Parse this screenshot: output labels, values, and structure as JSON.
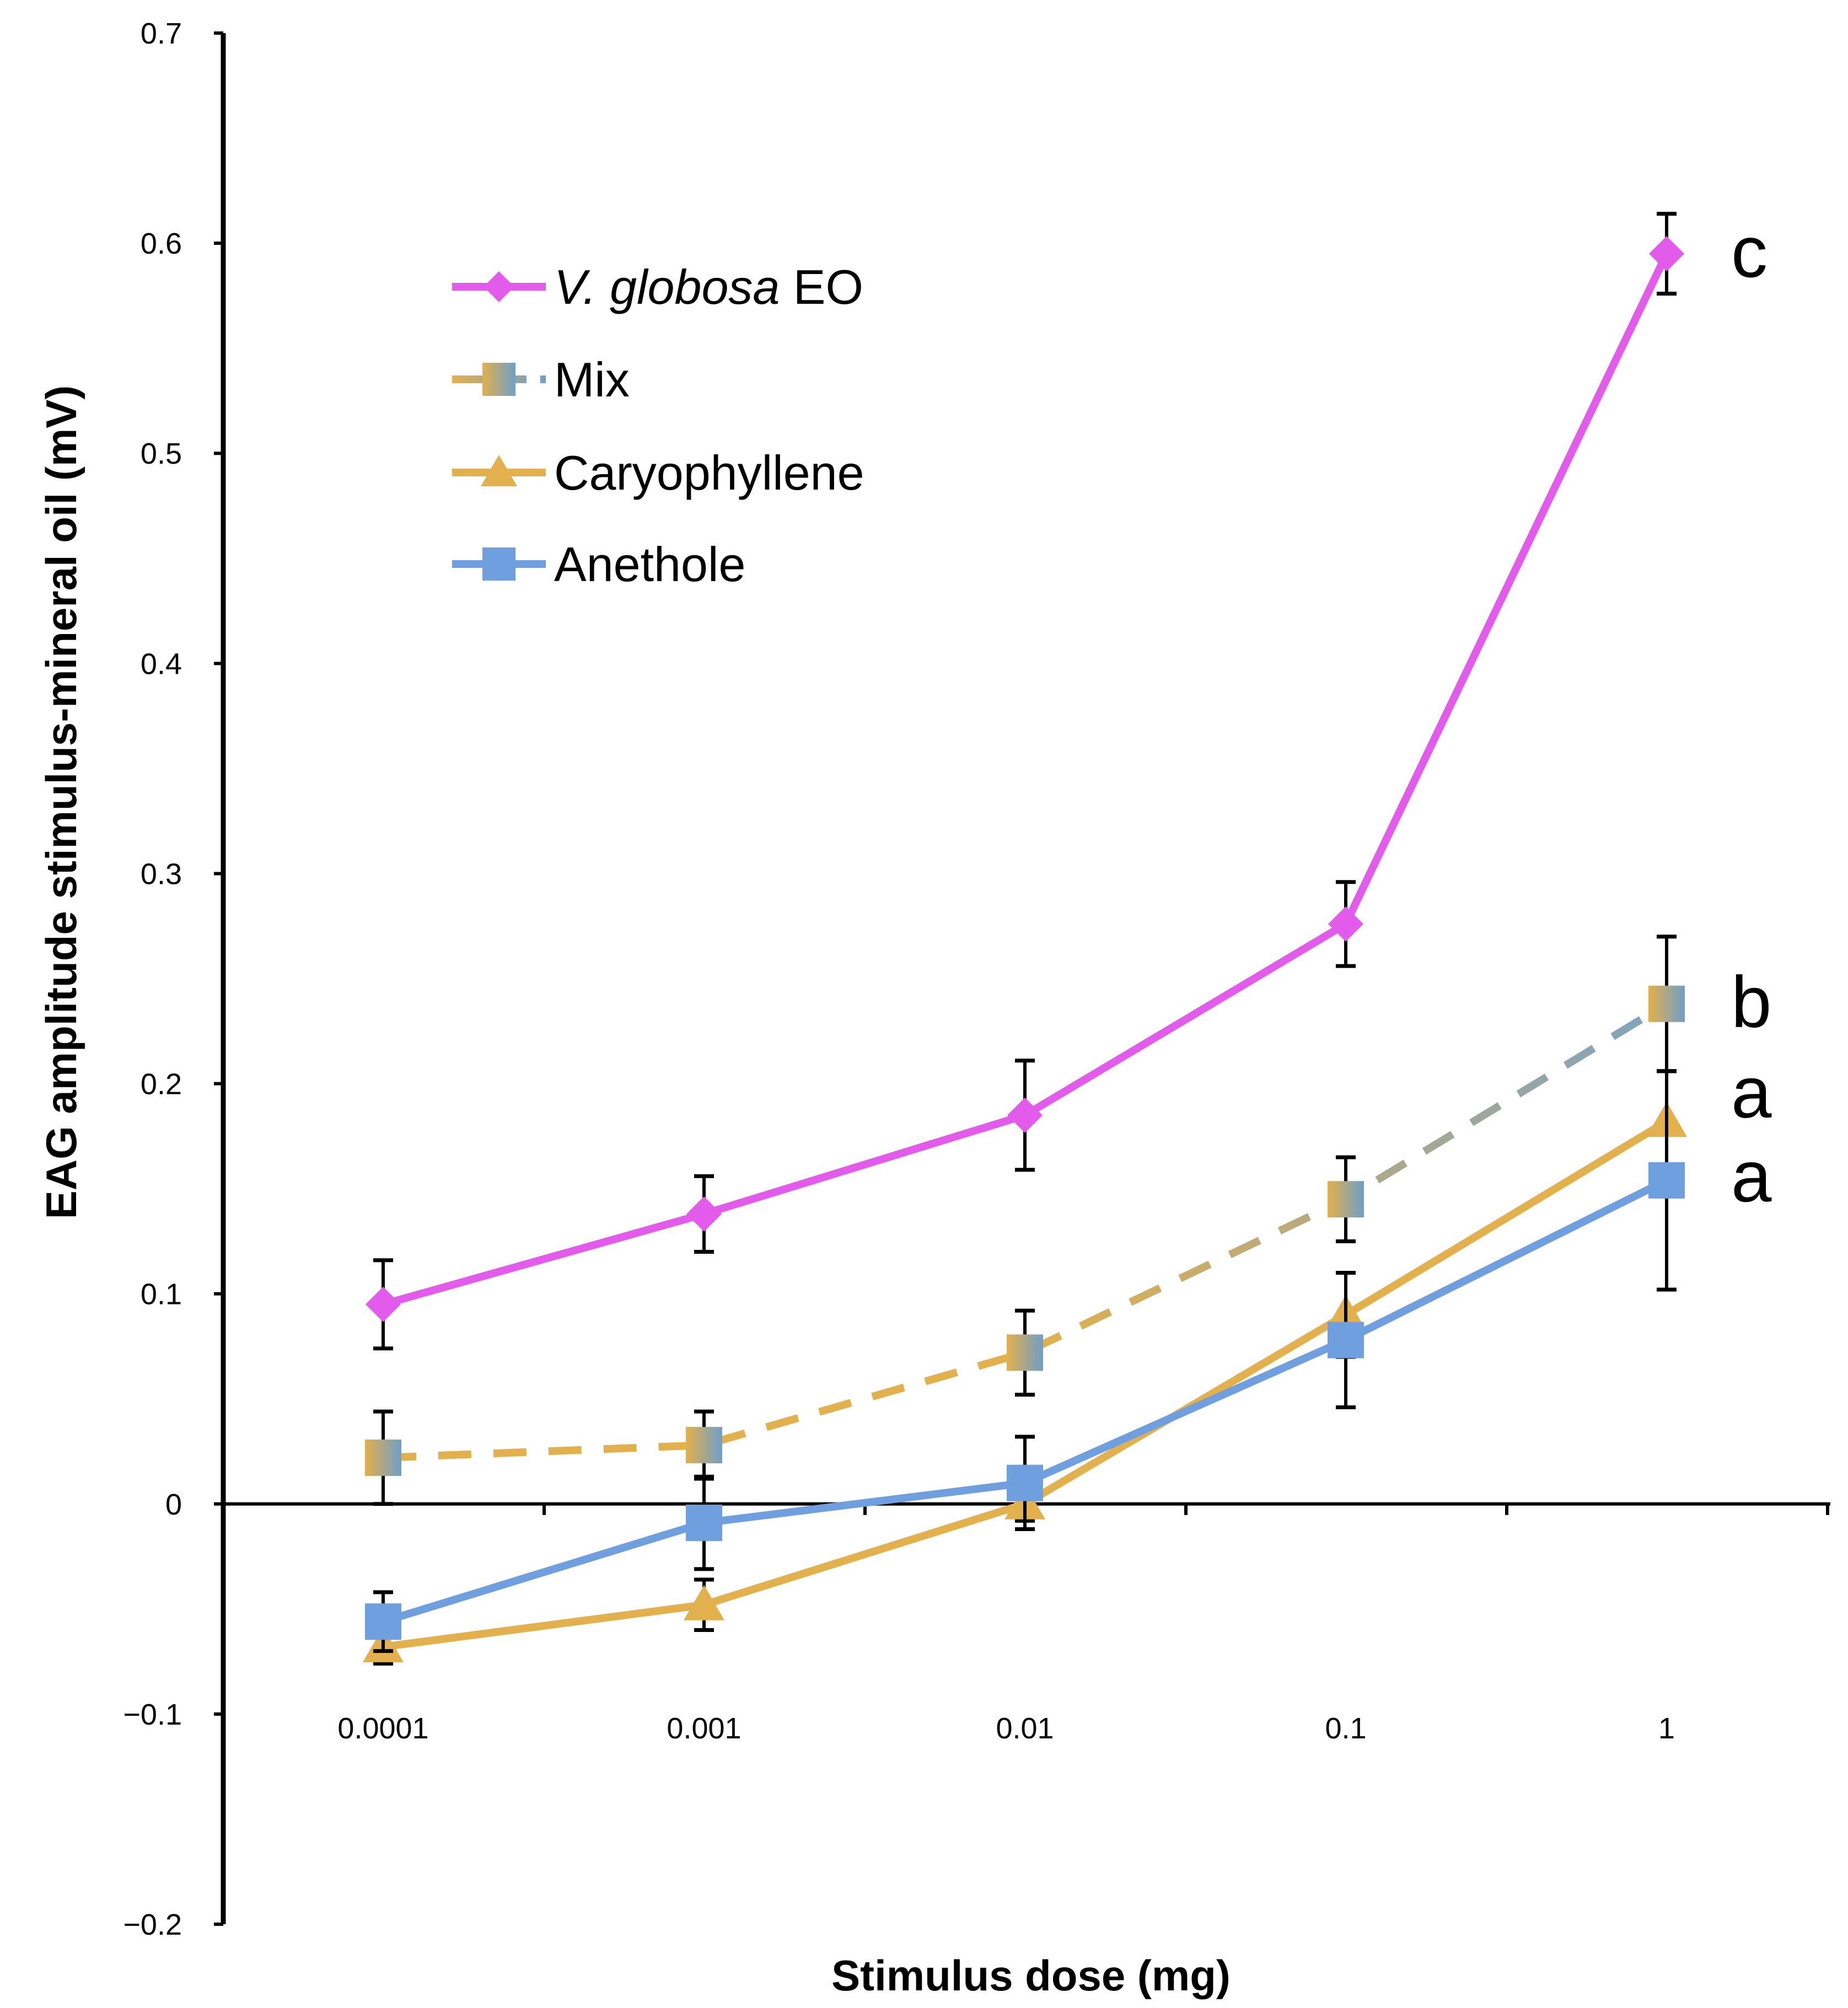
{
  "chart_data": {
    "type": "line",
    "title": "",
    "xlabel": "Stimulus dose (mg)",
    "ylabel": "EAG amplitude stimulus-mineral oil (mV)",
    "categories": [
      "0.0001",
      "0.001",
      "0.01",
      "0.1",
      "1"
    ],
    "ylim": [
      -0.2,
      0.7
    ],
    "yticks": [
      0.7,
      0.6,
      0.5,
      0.4,
      0.3,
      0.2,
      0.1,
      0,
      -0.1,
      -0.2
    ],
    "ytick_labels": [
      "0.7",
      "0.6",
      "0.5",
      "0.4",
      "0.3",
      "0.2",
      "0.1",
      "0",
      "−0.1",
      "−0.2"
    ],
    "grid": false,
    "legend_position": "top-left",
    "series": [
      {
        "name_italic": "V. globosa",
        "name_rest": " EO",
        "color": "#e35bea",
        "marker": "diamond",
        "dash": "solid",
        "values": [
          0.095,
          0.138,
          0.185,
          0.276,
          0.595
        ],
        "errors": [
          0.021,
          0.018,
          0.026,
          0.02,
          0.019
        ],
        "sig_letter": "c"
      },
      {
        "name": "Mix",
        "color": "#e2b04c",
        "color_end": "#6f9fc9",
        "marker": "square",
        "dash": "dashed",
        "values": [
          0.022,
          0.028,
          0.072,
          0.145,
          0.238
        ],
        "errors": [
          0.022,
          0.016,
          0.02,
          0.02,
          0.032
        ],
        "sig_letter": "b"
      },
      {
        "name": "Caryophyllene",
        "color": "#e2b04c",
        "marker": "triangle",
        "dash": "solid",
        "values": [
          -0.068,
          -0.048,
          0.0,
          0.09,
          0.182
        ],
        "errors": [
          0.008,
          0.012,
          0.008,
          0.02,
          0.024
        ],
        "sig_letter": "a"
      },
      {
        "name": "Anethole",
        "color": "#6f9fde",
        "marker": "square",
        "dash": "solid",
        "values": [
          -0.056,
          -0.009,
          0.01,
          0.078,
          0.154
        ],
        "errors": [
          0.014,
          0.022,
          0.022,
          0.032,
          0.052
        ],
        "sig_letter": "a"
      }
    ]
  }
}
